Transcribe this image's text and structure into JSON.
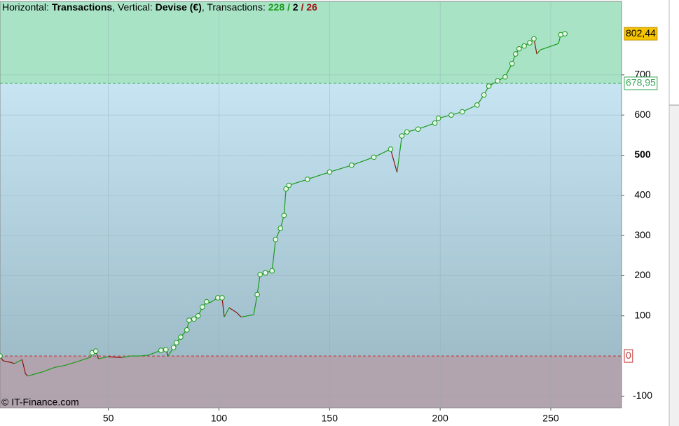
{
  "chart_data": {
    "type": "line",
    "header_parts": [
      {
        "text": "Horizontal: "
      },
      {
        "text": "Transactions",
        "bold": true
      },
      {
        "text": ", Vertical: "
      },
      {
        "text": "Devise (€)",
        "bold": true
      },
      {
        "text": ", Transactions: "
      },
      {
        "text": "228",
        "bold": true,
        "color": "#1a9a1a"
      },
      {
        "text": " / ",
        "bold": true,
        "color": "#1a9a1a"
      },
      {
        "text": "2",
        "bold": true
      },
      {
        "text": " / ",
        "bold": true,
        "color": "#a01010"
      },
      {
        "text": "26",
        "bold": true,
        "color": "#a01010"
      }
    ],
    "watermark": "© IT-Finance.com",
    "x": [
      1,
      2.4,
      5.9,
      7.5,
      11,
      12.5,
      13.5,
      20,
      26,
      30,
      36,
      42,
      42.7,
      44.3,
      45.5,
      50,
      56,
      60,
      64,
      68,
      73.8,
      76,
      77,
      79.5,
      80.8,
      82.7,
      85.5,
      86.5,
      88.7,
      90.6,
      92.5,
      94.4,
      96,
      99.5,
      101.4,
      102.4,
      104.6,
      108,
      110,
      115.7,
      117.3,
      118.6,
      121,
      124,
      125.6,
      127.8,
      129.4,
      130.3,
      131.6,
      140,
      150,
      160,
      170,
      177.6,
      180.5,
      182.7,
      185,
      190,
      197.6,
      199.2,
      205,
      210,
      216.7,
      219.8,
      222,
      226,
      229.4,
      232.5,
      234.1,
      235.7,
      238,
      240.5,
      242.4,
      243.7,
      245.2,
      253.5,
      254.5,
      256.4
    ],
    "values": [
      0,
      -12,
      -16,
      -19,
      -9,
      -44,
      -50,
      -40,
      -28,
      -24,
      -14,
      -3,
      8,
      12,
      -7,
      -2,
      -4,
      0,
      0,
      2,
      14,
      16,
      0,
      21,
      33,
      47,
      65,
      89,
      92,
      100,
      122,
      135,
      133,
      145,
      145,
      97,
      120,
      108,
      97,
      103,
      153,
      203,
      207,
      212,
      290,
      318,
      350,
      416,
      425,
      440,
      458,
      475,
      495,
      515,
      457,
      548,
      558,
      565,
      580,
      592,
      600,
      608,
      625,
      650,
      672,
      685,
      695,
      728,
      752,
      765,
      772,
      780,
      790,
      752,
      762,
      778,
      800,
      802.44
    ],
    "up_color": "#1a9a1a",
    "down_color": "#8b1010",
    "xlim": [
      1,
      282
    ],
    "ylim": [
      -129,
      883
    ],
    "xticks": [
      50,
      100,
      150,
      200,
      250
    ],
    "yticks": [
      -100,
      100,
      200,
      300,
      400,
      {
        "value": 500,
        "label": "500",
        "bold": true
      },
      600,
      700
    ],
    "grid": true,
    "reference_lines": [
      {
        "value": 802.44,
        "label": "802,44",
        "line": false,
        "box": "#f5c400",
        "text_color": "#000"
      },
      {
        "value": 678.95,
        "label": "678,95",
        "line": true,
        "box": "#ffffff",
        "text_color": "#3aa85a"
      },
      {
        "value": 0,
        "label": "0",
        "line": true,
        "box": "#ffffff",
        "text_color": "#c03030"
      }
    ]
  }
}
